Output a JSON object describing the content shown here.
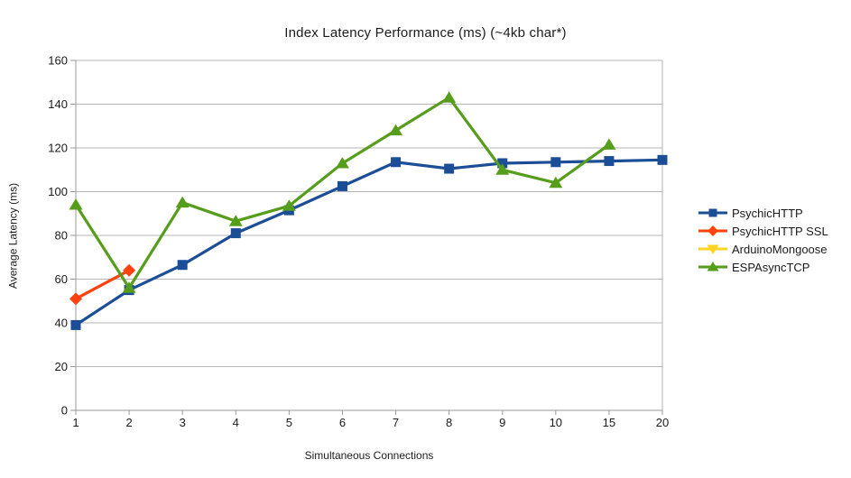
{
  "chart_data": {
    "type": "line",
    "title": "Index Latency Performance (ms) (~4kb char*)",
    "xlabel": "Simultaneous Connections",
    "ylabel": "Average Latency (ms)",
    "categories": [
      "1",
      "2",
      "3",
      "4",
      "5",
      "6",
      "7",
      "8",
      "9",
      "10",
      "15",
      "20"
    ],
    "ylim": [
      0,
      160
    ],
    "ytick_step": 20,
    "grid": "horizontal",
    "legend_position": "right",
    "series": [
      {
        "name": "PsychicHTTP",
        "color": "#1B4E97",
        "marker": "square",
        "values": [
          39,
          55,
          66.5,
          81,
          91.5,
          102.5,
          113.5,
          110.5,
          113,
          113.5,
          114,
          114.5
        ]
      },
      {
        "name": "PsychicHTTP SSL",
        "color": "#FF420E",
        "marker": "diamond",
        "values": [
          51,
          64,
          null,
          null,
          null,
          null,
          null,
          null,
          null,
          null,
          null,
          null
        ]
      },
      {
        "name": "ArduinoMongoose",
        "color": "#FFD320",
        "marker": "triangle-down",
        "values": [
          null,
          null,
          null,
          null,
          null,
          null,
          null,
          null,
          null,
          null,
          null,
          null
        ]
      },
      {
        "name": "ESPAsyncTCP",
        "color": "#579D1C",
        "marker": "triangle-up",
        "values": [
          94,
          56,
          95,
          86.5,
          93.5,
          113,
          128,
          143,
          110,
          104,
          121.5,
          null
        ]
      }
    ]
  }
}
